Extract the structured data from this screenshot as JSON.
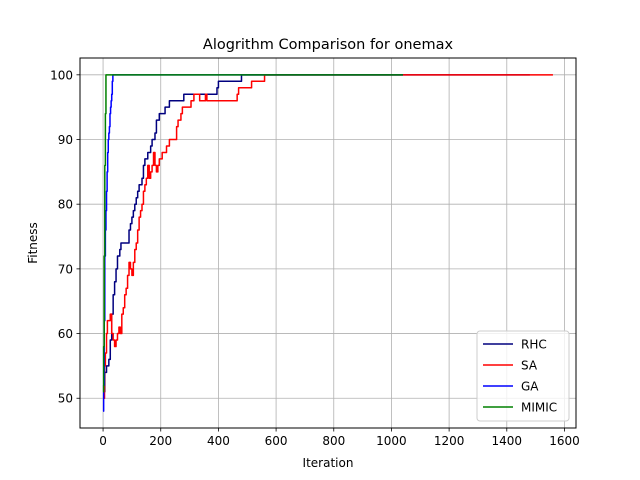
{
  "chart_data": {
    "type": "line",
    "title": "Alogrithm Comparison for onemax",
    "xlabel": "Iteration",
    "ylabel": "Fitness",
    "xlim": [
      -80,
      1640
    ],
    "ylim": [
      45.4,
      102.6
    ],
    "xticks": [
      0,
      200,
      400,
      600,
      800,
      1000,
      1200,
      1400,
      1600
    ],
    "yticks": [
      50,
      60,
      70,
      80,
      90,
      100
    ],
    "grid": true,
    "legend_position": "lower right",
    "series": [
      {
        "name": "RHC",
        "color": "#00007f",
        "points": [
          [
            0,
            50
          ],
          [
            3,
            51
          ],
          [
            6,
            54
          ],
          [
            12,
            55
          ],
          [
            20,
            56
          ],
          [
            25,
            59
          ],
          [
            30,
            63
          ],
          [
            35,
            66
          ],
          [
            40,
            68
          ],
          [
            45,
            70
          ],
          [
            50,
            72
          ],
          [
            58,
            73
          ],
          [
            62,
            74
          ],
          [
            85,
            74
          ],
          [
            90,
            76
          ],
          [
            95,
            77
          ],
          [
            100,
            78
          ],
          [
            105,
            79
          ],
          [
            110,
            80
          ],
          [
            115,
            81
          ],
          [
            120,
            82
          ],
          [
            125,
            83
          ],
          [
            135,
            84
          ],
          [
            140,
            86
          ],
          [
            145,
            87
          ],
          [
            155,
            88
          ],
          [
            165,
            89
          ],
          [
            170,
            90
          ],
          [
            180,
            91
          ],
          [
            185,
            93
          ],
          [
            195,
            94
          ],
          [
            210,
            94
          ],
          [
            215,
            95
          ],
          [
            225,
            95
          ],
          [
            230,
            96
          ],
          [
            275,
            96
          ],
          [
            280,
            97
          ],
          [
            350,
            97
          ],
          [
            355,
            97
          ],
          [
            390,
            97
          ],
          [
            395,
            98
          ],
          [
            400,
            99
          ],
          [
            475,
            99
          ],
          [
            480,
            100
          ],
          [
            1480,
            100
          ]
        ]
      },
      {
        "name": "SA",
        "color": "#ff0000",
        "points": [
          [
            0,
            50
          ],
          [
            5,
            55
          ],
          [
            8,
            57
          ],
          [
            12,
            60
          ],
          [
            15,
            62
          ],
          [
            20,
            62
          ],
          [
            25,
            63
          ],
          [
            30,
            60
          ],
          [
            35,
            59
          ],
          [
            40,
            58
          ],
          [
            45,
            59
          ],
          [
            50,
            60
          ],
          [
            55,
            61
          ],
          [
            60,
            60
          ],
          [
            65,
            63
          ],
          [
            70,
            64
          ],
          [
            75,
            66
          ],
          [
            80,
            67
          ],
          [
            85,
            69
          ],
          [
            90,
            71
          ],
          [
            95,
            70
          ],
          [
            100,
            69
          ],
          [
            105,
            71
          ],
          [
            110,
            73
          ],
          [
            115,
            74
          ],
          [
            120,
            76
          ],
          [
            125,
            78
          ],
          [
            130,
            79
          ],
          [
            135,
            80
          ],
          [
            140,
            82
          ],
          [
            145,
            83
          ],
          [
            150,
            84
          ],
          [
            155,
            86
          ],
          [
            160,
            84
          ],
          [
            165,
            85
          ],
          [
            170,
            86
          ],
          [
            175,
            88
          ],
          [
            180,
            86
          ],
          [
            185,
            85
          ],
          [
            190,
            86
          ],
          [
            195,
            87
          ],
          [
            205,
            88
          ],
          [
            215,
            88
          ],
          [
            220,
            89
          ],
          [
            230,
            90
          ],
          [
            250,
            90
          ],
          [
            255,
            92
          ],
          [
            260,
            93
          ],
          [
            270,
            94
          ],
          [
            275,
            95
          ],
          [
            300,
            95
          ],
          [
            305,
            96
          ],
          [
            315,
            97
          ],
          [
            330,
            97
          ],
          [
            335,
            96
          ],
          [
            350,
            96
          ],
          [
            355,
            97
          ],
          [
            360,
            96
          ],
          [
            460,
            96
          ],
          [
            465,
            97
          ],
          [
            470,
            98
          ],
          [
            510,
            98
          ],
          [
            515,
            99
          ],
          [
            555,
            99
          ],
          [
            560,
            100
          ],
          [
            1560,
            100
          ]
        ]
      },
      {
        "name": "GA",
        "color": "#0000ff",
        "points": [
          [
            0,
            48
          ],
          [
            2,
            52
          ],
          [
            4,
            62
          ],
          [
            6,
            72
          ],
          [
            8,
            76
          ],
          [
            10,
            79
          ],
          [
            12,
            82
          ],
          [
            14,
            85
          ],
          [
            16,
            88
          ],
          [
            18,
            90
          ],
          [
            20,
            91
          ],
          [
            22,
            92
          ],
          [
            24,
            94
          ],
          [
            26,
            95
          ],
          [
            28,
            96
          ],
          [
            30,
            97
          ],
          [
            32,
            99
          ],
          [
            34,
            100
          ],
          [
            1040,
            100
          ]
        ]
      },
      {
        "name": "MIMIC",
        "color": "#008000",
        "points": [
          [
            0,
            51
          ],
          [
            2,
            58
          ],
          [
            4,
            72
          ],
          [
            6,
            86
          ],
          [
            8,
            94
          ],
          [
            10,
            100
          ],
          [
            1040,
            100
          ]
        ]
      }
    ]
  }
}
